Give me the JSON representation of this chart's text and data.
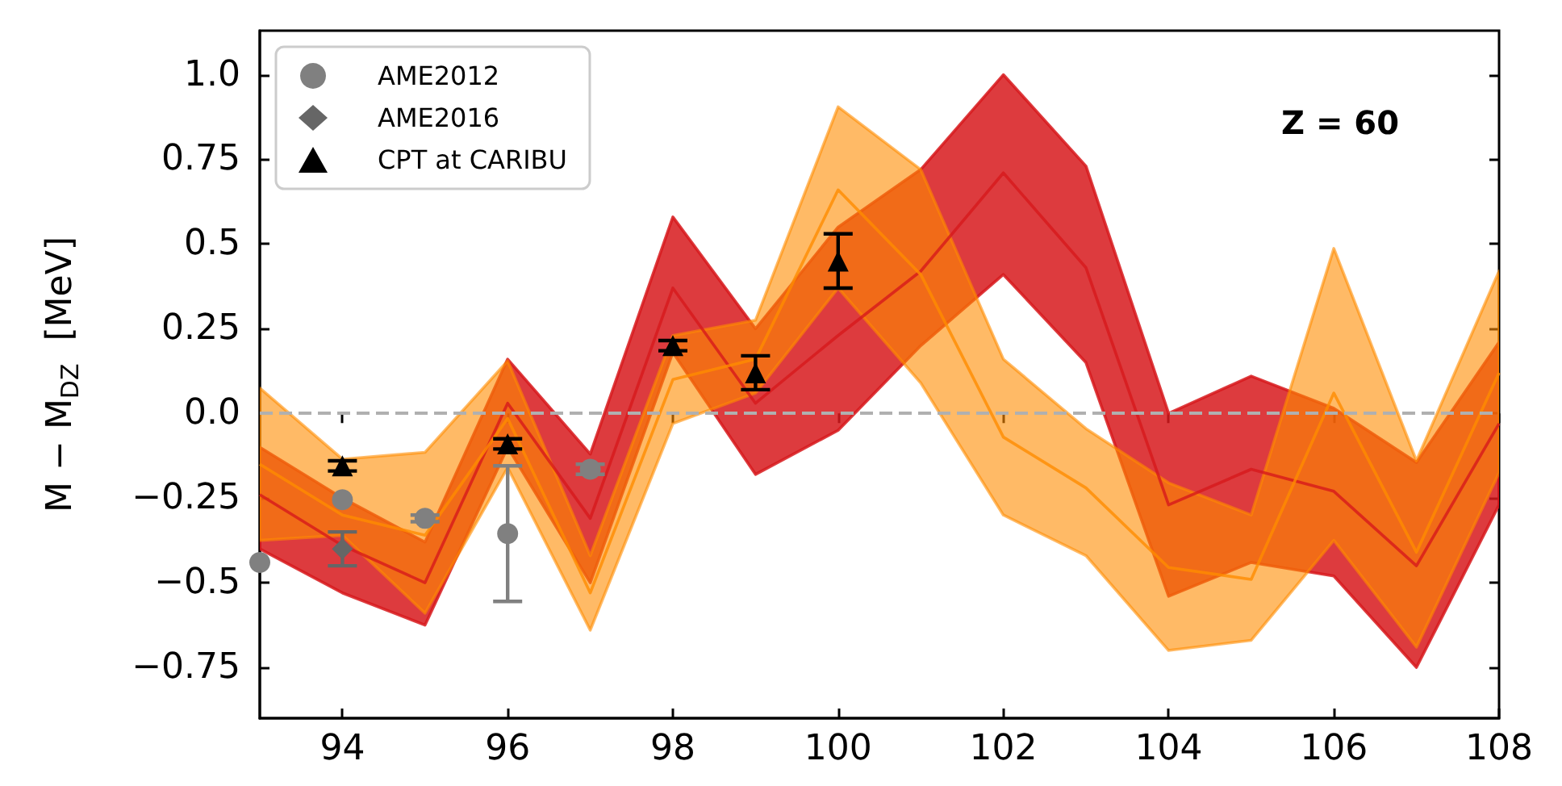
{
  "chart_data": {
    "type": "line",
    "ylabel": "M − M$_{DZ}$  [MeV]",
    "annotations": [
      "Z = 60"
    ],
    "x": [
      93,
      94,
      95,
      96,
      97,
      98,
      99,
      100,
      101,
      102,
      103,
      104,
      105,
      106,
      107,
      108
    ],
    "xlim": [
      93,
      108
    ],
    "xticks": [
      94,
      96,
      98,
      100,
      102,
      104,
      106,
      108
    ],
    "ylim": [
      -0.9,
      1.13
    ],
    "yticks": [
      {
        "value": -0.75,
        "label": "−0.75"
      },
      {
        "value": -0.5,
        "label": "−0.5"
      },
      {
        "value": -0.25,
        "label": "−0.25"
      },
      {
        "value": 0,
        "label": "0.0"
      },
      0.25,
      {
        "value": 0.5,
        "label": "0.5"
      },
      0.75,
      {
        "value": 1,
        "label": "1.0"
      }
    ],
    "grid": false,
    "legend": "top left",
    "ref_lines": [
      {
        "axis": "y",
        "value": 0,
        "color": "#b0b0b0",
        "line_style": "dashed"
      }
    ],
    "series": [
      {
        "color": "#d7191c",
        "values": [
          -0.24,
          -0.39,
          -0.5,
          0.03,
          -0.31,
          0.37,
          0.03,
          0.23,
          0.42,
          0.71,
          0.43,
          -0.27,
          -0.165,
          -0.23,
          -0.45,
          -0.03
        ],
        "lower": [
          -0.4,
          -0.53,
          -0.625,
          -0.1,
          -0.5,
          0.18,
          -0.18,
          -0.05,
          0.2,
          0.41,
          0.15,
          -0.54,
          -0.44,
          -0.48,
          -0.75,
          -0.27
        ],
        "upper": [
          -0.1,
          -0.25,
          -0.38,
          0.16,
          -0.12,
          0.58,
          0.25,
          0.55,
          0.72,
          1.0,
          0.73,
          0,
          0.11,
          0.015,
          -0.145,
          0.21
        ]
      },
      {
        "color": "#ff8c00",
        "values": [
          -0.15,
          -0.3,
          -0.36,
          -0.015,
          -0.53,
          0.1,
          0.16,
          0.66,
          0.41,
          -0.07,
          -0.22,
          -0.455,
          -0.49,
          0.06,
          -0.41,
          0.12
        ],
        "lower": [
          -0.375,
          -0.36,
          -0.59,
          -0.16,
          -0.64,
          -0.03,
          0.06,
          0.37,
          0.09,
          -0.3,
          -0.42,
          -0.7,
          -0.67,
          -0.375,
          -0.69,
          -0.175
        ],
        "upper": [
          0.075,
          -0.135,
          -0.115,
          0.155,
          -0.42,
          0.23,
          0.275,
          0.905,
          0.72,
          0.16,
          -0.045,
          -0.205,
          -0.3,
          0.487,
          -0.14,
          0.42
        ]
      },
      {
        "name": "AME2012",
        "type": "scatter",
        "marker": "circle",
        "color": "#808080",
        "x": [
          93,
          94,
          95,
          96,
          97
        ],
        "values": [
          -0.44,
          -0.255,
          -0.31,
          -0.355,
          -0.165
        ],
        "errors": [
          null,
          null,
          0.01,
          [
            -0.555,
            -0.155
          ],
          0.015
        ]
      },
      {
        "name": "AME2016",
        "type": "scatter",
        "marker": "diamond",
        "color": "#666666",
        "x": [
          94
        ],
        "values": [
          -0.4
        ],
        "errors": [
          [
            -0.45,
            -0.35
          ]
        ]
      },
      {
        "name": "CPT at CARIBU",
        "type": "scatter",
        "marker": "triangle",
        "color": "#000000",
        "x": [
          94,
          96,
          98,
          99,
          100
        ],
        "values": [
          -0.155,
          -0.09,
          0.2,
          0.12,
          0.45
        ],
        "errors": [
          0.015,
          0.015,
          0.015,
          [
            0.07,
            0.17
          ],
          [
            0.37,
            0.53
          ]
        ]
      }
    ]
  }
}
